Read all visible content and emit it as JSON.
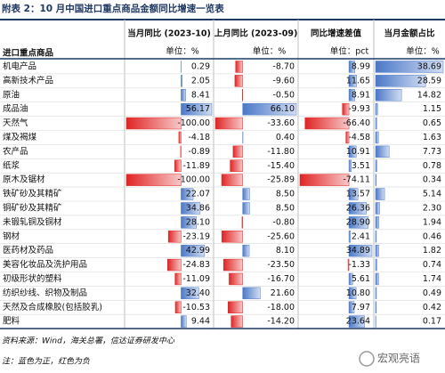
{
  "header": {
    "title": "附表 2：10 月中国进口重点商品金额同比增速一览表"
  },
  "table": {
    "columns": [
      "进口重点商品",
      "当月同比 (2023-10)",
      "上月同比 (2023-09)",
      "同比增速差值",
      "当月金额占比"
    ],
    "units": [
      "单位：%",
      "单位：%",
      "单位：pct",
      "单位：%"
    ],
    "positive_color": "#4a78c8",
    "negative_color": "#e02424",
    "rows": [
      {
        "name": "机电产品",
        "values": [
          0.29,
          -8.7,
          8.99,
          38.69
        ],
        "value_labels": [
          "0.29",
          "-8.70",
          "8.99",
          "38.69"
        ]
      },
      {
        "name": "高新技术产品",
        "values": [
          2.05,
          -9.6,
          11.65,
          28.59
        ],
        "value_labels": [
          "2.05",
          "-9.60",
          "11.65",
          "28.59"
        ]
      },
      {
        "name": "原油",
        "values": [
          8.41,
          -0.5,
          8.91,
          14.82
        ],
        "value_labels": [
          "8.41",
          "-0.50",
          "8.91",
          "14.82"
        ]
      },
      {
        "name": "成品油",
        "values": [
          56.17,
          66.1,
          -9.93,
          1.15
        ],
        "value_labels": [
          "56.17",
          "66.10",
          "-9.93",
          "1.15"
        ]
      },
      {
        "name": "天然气",
        "values": [
          -100,
          -33.6,
          -66.4,
          0.65
        ],
        "value_labels": [
          "-100.00",
          "-33.60",
          "-66.40",
          "0.65"
        ]
      },
      {
        "name": "煤及褐煤",
        "values": [
          -4.18,
          0.4,
          -4.58,
          1.63
        ],
        "value_labels": [
          "-4.18",
          "0.40",
          "-4.58",
          "1.63"
        ]
      },
      {
        "name": "农产品",
        "values": [
          -0.89,
          -11.8,
          10.91,
          7.73
        ],
        "value_labels": [
          "-0.89",
          "-11.80",
          "10.91",
          "7.73"
        ]
      },
      {
        "name": "纸浆",
        "values": [
          -11.89,
          -15.4,
          3.51,
          0.78
        ],
        "value_labels": [
          "-11.89",
          "-15.40",
          "3.51",
          "0.78"
        ]
      },
      {
        "name": "原木及锯材",
        "values": [
          -100,
          -25.89,
          -74.11,
          0.34
        ],
        "value_labels": [
          "-100.00",
          "-25.89",
          "-74.11",
          "0.34"
        ]
      },
      {
        "name": "铁矿砂及其精矿",
        "values": [
          22.07,
          8.5,
          13.57,
          5.14
        ],
        "value_labels": [
          "22.07",
          "8.50",
          "13.57",
          "5.14"
        ]
      },
      {
        "name": "铜矿砂及其精矿",
        "values": [
          34.86,
          8.5,
          26.36,
          2.3
        ],
        "value_labels": [
          "34.86",
          "8.50",
          "26.36",
          "2.30"
        ]
      },
      {
        "name": "未锻轧铜及铜材",
        "values": [
          28.1,
          -0.8,
          28.9,
          1.94
        ],
        "value_labels": [
          "28.10",
          "-0.80",
          "28.90",
          "1.94"
        ]
      },
      {
        "name": "钢材",
        "values": [
          -23.19,
          -25.6,
          2.41,
          0.46
        ],
        "value_labels": [
          "-23.19",
          "-25.60",
          "2.41",
          "0.46"
        ]
      },
      {
        "name": "医药材及药品",
        "values": [
          42.99,
          8.1,
          34.89,
          1.82
        ],
        "value_labels": [
          "42.99",
          "8.10",
          "34.89",
          "1.82"
        ]
      },
      {
        "name": "美容化妆品及洗护用品",
        "values": [
          -24.83,
          -23.5,
          -1.33,
          0.74
        ],
        "value_labels": [
          "-24.83",
          "-23.50",
          "-1.33",
          "0.74"
        ]
      },
      {
        "name": "初级形状的塑料",
        "values": [
          -11.09,
          -16.7,
          5.61,
          1.74
        ],
        "value_labels": [
          "-11.09",
          "-16.70",
          "5.61",
          "1.74"
        ]
      },
      {
        "name": "纺织纱线、织物及制品",
        "values": [
          32.4,
          21.6,
          10.8,
          0.49
        ],
        "value_labels": [
          "32.40",
          "21.60",
          "10.80",
          "0.49"
        ]
      },
      {
        "name": "天然及合成橡胶(包括胶乳)",
        "values": [
          -10.53,
          -18,
          7.97,
          0.42
        ],
        "value_labels": [
          "-10.53",
          "-18.00",
          "7.97",
          "0.42"
        ]
      },
      {
        "name": "肥料",
        "values": [
          9.44,
          -14.2,
          23.64,
          0.17
        ],
        "value_labels": [
          "9.44",
          "-14.20",
          "23.64",
          "0.17"
        ]
      }
    ]
  },
  "footer": {
    "source": "资料来源：Wind，海关总署，信达证券研发中心",
    "note": "注：蓝色为正，红色为负"
  },
  "watermark": "宏观亮语"
}
